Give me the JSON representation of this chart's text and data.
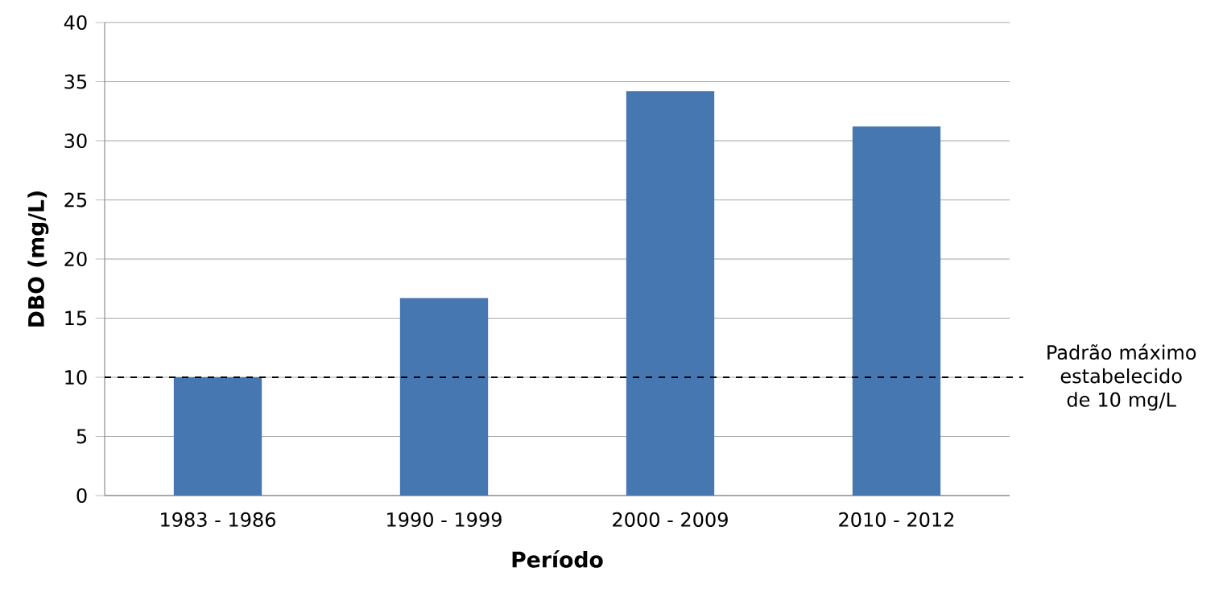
{
  "chart_data": {
    "type": "bar",
    "xlabel": "Período",
    "ylabel": "DBO (mg/L)",
    "categories": [
      "1983 - 1986",
      "1990 - 1999",
      "2000 - 2009",
      "2010 - 2012"
    ],
    "values": [
      10,
      16.7,
      34.2,
      31.2
    ],
    "color": "#4677b0",
    "ylim": [
      0,
      40
    ],
    "yticks": [
      0,
      5,
      10,
      15,
      20,
      25,
      30,
      35,
      40
    ],
    "grid": "y",
    "ref_lines": [
      {
        "axis": "y",
        "value": 10,
        "label": "Padrão máximo estabelecido de 10 mg/L",
        "line_style": "dashed",
        "color": "#000000"
      }
    ]
  }
}
